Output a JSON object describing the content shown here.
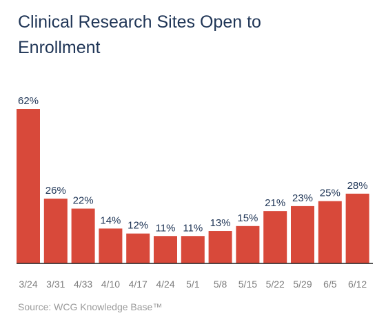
{
  "chart_data": {
    "type": "bar",
    "title": "Clinical Research Sites Open to Enrollment",
    "categories": [
      "3/24",
      "3/31",
      "4/33",
      "4/10",
      "4/17",
      "4/24",
      "5/1",
      "5/8",
      "5/15",
      "5/22",
      "5/29",
      "6/5",
      "6/12"
    ],
    "values": [
      62,
      26,
      22,
      14,
      12,
      11,
      11,
      13,
      15,
      21,
      23,
      25,
      28
    ],
    "value_labels": [
      "62%",
      "26%",
      "22%",
      "14%",
      "12%",
      "11%",
      "11%",
      "13%",
      "15%",
      "21%",
      "23%",
      "25%",
      "28%"
    ],
    "unit": "%",
    "ylim": [
      0,
      62
    ],
    "grid": false,
    "legend": "none",
    "colors": {
      "bar": "#d8493a",
      "title": "#1f3556",
      "value_label": "#1f3556",
      "tick_label": "#7d7d7d",
      "axis": "#1e1e1e"
    },
    "source": "Source: WCG Knowledge Base™"
  }
}
